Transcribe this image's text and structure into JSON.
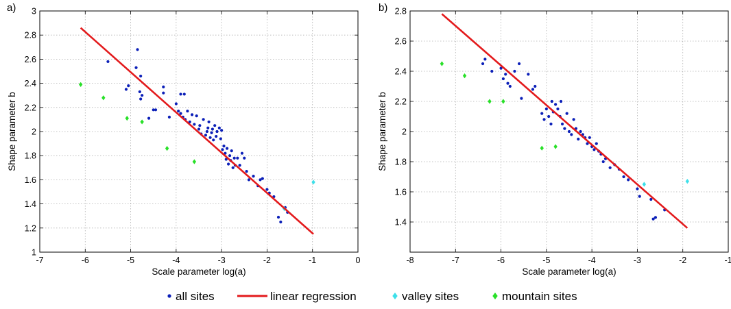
{
  "legend": {
    "placement": "bottom-center",
    "entries": [
      {
        "label": "all sites",
        "color": "#0b1fb8",
        "marker": "dot"
      },
      {
        "label": "linear regression",
        "color": "#e31a1c",
        "marker": "line"
      },
      {
        "label": "valley sites",
        "color": "#3ee0ea",
        "marker": "diamond"
      },
      {
        "label": "mountain sites",
        "color": "#28e028",
        "marker": "diamond"
      }
    ]
  },
  "chart_data": [
    {
      "type": "scatter",
      "panel_label": "a)",
      "xlabel": "Scale parameter log(a)",
      "ylabel": "Shape parameter b",
      "xlim": [
        -7,
        0
      ],
      "ylim": [
        1,
        3
      ],
      "xticks": [
        -7,
        -6,
        -5,
        -4,
        -3,
        -2,
        -1,
        0
      ],
      "yticks": [
        1,
        1.2,
        1.4,
        1.6,
        1.8,
        2,
        2.2,
        2.4,
        2.6,
        2.8,
        3
      ],
      "grid": true,
      "regression": {
        "x": [
          -6.1,
          -0.98
        ],
        "y": [
          2.86,
          1.15
        ]
      },
      "series": [
        {
          "name": "all sites",
          "color": "#0b1fb8",
          "marker": "dot",
          "points": [
            [
              -5.5,
              2.58
            ],
            [
              -5.1,
              2.35
            ],
            [
              -5.05,
              2.38
            ],
            [
              -4.88,
              2.53
            ],
            [
              -4.85,
              2.68
            ],
            [
              -4.78,
              2.46
            ],
            [
              -4.8,
              2.33
            ],
            [
              -4.75,
              2.3
            ],
            [
              -4.78,
              2.27
            ],
            [
              -4.6,
              2.11
            ],
            [
              -4.5,
              2.18
            ],
            [
              -4.45,
              2.18
            ],
            [
              -4.28,
              2.37
            ],
            [
              -4.28,
              2.32
            ],
            [
              -4.15,
              2.12
            ],
            [
              -4.0,
              2.23
            ],
            [
              -3.9,
              2.31
            ],
            [
              -3.82,
              2.31
            ],
            [
              -3.95,
              2.17
            ],
            [
              -3.9,
              2.15
            ],
            [
              -3.85,
              2.12
            ],
            [
              -3.8,
              2.1
            ],
            [
              -3.75,
              2.17
            ],
            [
              -3.7,
              2.08
            ],
            [
              -3.65,
              2.14
            ],
            [
              -3.6,
              2.06
            ],
            [
              -3.55,
              2.13
            ],
            [
              -3.5,
              2.02
            ],
            [
              -3.48,
              2.05
            ],
            [
              -3.45,
              1.98
            ],
            [
              -3.4,
              2.1
            ],
            [
              -3.35,
              1.97
            ],
            [
              -3.32,
              2.0
            ],
            [
              -3.3,
              2.03
            ],
            [
              -3.28,
              2.08
            ],
            [
              -3.25,
              1.95
            ],
            [
              -3.22,
              1.99
            ],
            [
              -3.2,
              2.02
            ],
            [
              -3.18,
              1.93
            ],
            [
              -3.15,
              2.05
            ],
            [
              -3.12,
              1.96
            ],
            [
              -3.1,
              2.0
            ],
            [
              -3.05,
              2.03
            ],
            [
              -3.02,
              1.94
            ],
            [
              -3.0,
              2.01
            ],
            [
              -2.98,
              1.85
            ],
            [
              -2.95,
              1.88
            ],
            [
              -2.92,
              1.82
            ],
            [
              -2.9,
              1.77
            ],
            [
              -2.88,
              1.86
            ],
            [
              -2.85,
              1.73
            ],
            [
              -2.82,
              1.8
            ],
            [
              -2.8,
              1.76
            ],
            [
              -2.78,
              1.84
            ],
            [
              -2.75,
              1.7
            ],
            [
              -2.72,
              1.78
            ],
            [
              -2.7,
              1.72
            ],
            [
              -2.65,
              1.78
            ],
            [
              -2.6,
              1.72
            ],
            [
              -2.55,
              1.82
            ],
            [
              -2.5,
              1.78
            ],
            [
              -2.45,
              1.67
            ],
            [
              -2.4,
              1.6
            ],
            [
              -2.3,
              1.63
            ],
            [
              -2.2,
              1.55
            ],
            [
              -2.15,
              1.6
            ],
            [
              -2.1,
              1.61
            ],
            [
              -2.0,
              1.52
            ],
            [
              -1.95,
              1.49
            ],
            [
              -1.85,
              1.46
            ],
            [
              -1.75,
              1.29
            ],
            [
              -1.7,
              1.25
            ],
            [
              -1.6,
              1.37
            ],
            [
              -1.55,
              1.33
            ]
          ]
        },
        {
          "name": "valley sites",
          "color": "#3ee0ea",
          "marker": "diamond",
          "points": [
            [
              -1.62,
              1.36
            ],
            [
              -0.98,
              1.58
            ]
          ]
        },
        {
          "name": "mountain sites",
          "color": "#28e028",
          "marker": "diamond",
          "points": [
            [
              -6.1,
              2.39
            ],
            [
              -5.6,
              2.28
            ],
            [
              -5.08,
              2.11
            ],
            [
              -4.75,
              2.08
            ],
            [
              -4.2,
              1.86
            ],
            [
              -3.6,
              1.75
            ]
          ]
        }
      ]
    },
    {
      "type": "scatter",
      "panel_label": "b)",
      "xlabel": "Scale parameter log(a)",
      "ylabel": "Shape parameter b",
      "xlim": [
        -8,
        -1
      ],
      "ylim": [
        1.2,
        2.8
      ],
      "xticks": [
        -8,
        -7,
        -6,
        -5,
        -4,
        -3,
        -2,
        -1
      ],
      "yticks": [
        1.4,
        1.6,
        1.8,
        2,
        2.2,
        2.4,
        2.6,
        2.8
      ],
      "grid": true,
      "regression": {
        "x": [
          -7.3,
          -1.9
        ],
        "y": [
          2.78,
          1.36
        ]
      },
      "series": [
        {
          "name": "all sites",
          "color": "#0b1fb8",
          "marker": "dot",
          "points": [
            [
              -6.4,
              2.45
            ],
            [
              -6.35,
              2.48
            ],
            [
              -6.2,
              2.4
            ],
            [
              -6.0,
              2.42
            ],
            [
              -5.95,
              2.35
            ],
            [
              -5.9,
              2.38
            ],
            [
              -5.85,
              2.32
            ],
            [
              -5.8,
              2.3
            ],
            [
              -5.7,
              2.4
            ],
            [
              -5.6,
              2.45
            ],
            [
              -5.55,
              2.22
            ],
            [
              -5.4,
              2.38
            ],
            [
              -5.3,
              2.28
            ],
            [
              -5.25,
              2.3
            ],
            [
              -5.1,
              2.12
            ],
            [
              -5.05,
              2.08
            ],
            [
              -5.0,
              2.15
            ],
            [
              -4.95,
              2.1
            ],
            [
              -4.9,
              2.05
            ],
            [
              -4.88,
              2.2
            ],
            [
              -4.85,
              2.13
            ],
            [
              -4.8,
              2.18
            ],
            [
              -4.75,
              2.15
            ],
            [
              -4.7,
              2.1
            ],
            [
              -4.68,
              2.2
            ],
            [
              -4.65,
              2.05
            ],
            [
              -4.6,
              2.02
            ],
            [
              -4.55,
              2.12
            ],
            [
              -4.5,
              2.0
            ],
            [
              -4.45,
              1.98
            ],
            [
              -4.4,
              2.08
            ],
            [
              -4.35,
              2.02
            ],
            [
              -4.3,
              1.95
            ],
            [
              -4.25,
              2.0
            ],
            [
              -4.2,
              1.98
            ],
            [
              -4.15,
              1.96
            ],
            [
              -4.1,
              1.92
            ],
            [
              -4.05,
              1.96
            ],
            [
              -4.0,
              1.9
            ],
            [
              -3.95,
              1.88
            ],
            [
              -3.9,
              1.92
            ],
            [
              -3.85,
              1.87
            ],
            [
              -3.8,
              1.85
            ],
            [
              -3.75,
              1.8
            ],
            [
              -3.7,
              1.82
            ],
            [
              -3.6,
              1.76
            ],
            [
              -3.5,
              1.78
            ],
            [
              -3.4,
              1.75
            ],
            [
              -3.3,
              1.7
            ],
            [
              -3.2,
              1.68
            ],
            [
              -3.0,
              1.62
            ],
            [
              -2.95,
              1.57
            ],
            [
              -2.7,
              1.55
            ],
            [
              -2.65,
              1.42
            ],
            [
              -2.6,
              1.43
            ],
            [
              -2.4,
              1.48
            ]
          ]
        },
        {
          "name": "valley sites",
          "color": "#3ee0ea",
          "marker": "diamond",
          "points": [
            [
              -2.85,
              1.65
            ],
            [
              -1.9,
              1.67
            ]
          ]
        },
        {
          "name": "mountain sites",
          "color": "#28e028",
          "marker": "diamond",
          "points": [
            [
              -7.3,
              2.45
            ],
            [
              -6.8,
              2.37
            ],
            [
              -6.25,
              2.2
            ],
            [
              -5.95,
              2.2
            ],
            [
              -5.1,
              1.89
            ],
            [
              -4.8,
              1.9
            ]
          ]
        }
      ]
    }
  ]
}
